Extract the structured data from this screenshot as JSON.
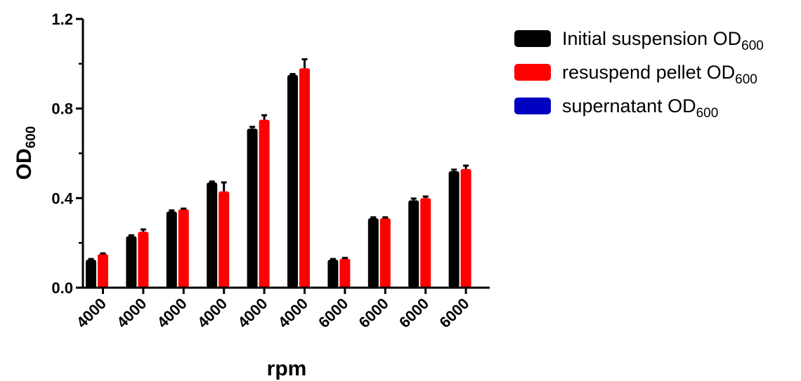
{
  "chart_data": {
    "type": "bar",
    "categories": [
      "4000",
      "4000",
      "4000",
      "4000",
      "4000",
      "4000",
      "6000",
      "6000",
      "6000",
      "6000"
    ],
    "series": [
      {
        "name": "Initial suspension OD",
        "name_sub": "600",
        "color": "#000000",
        "values": [
          0.125,
          0.23,
          0.34,
          0.47,
          0.71,
          0.95,
          0.125,
          0.31,
          0.39,
          0.52
        ],
        "errors": [
          0.003,
          0.004,
          0.005,
          0.004,
          0.008,
          0.004,
          0.003,
          0.004,
          0.008,
          0.007
        ]
      },
      {
        "name": "resuspend pellet OD",
        "name_sub": "600",
        "color": "#ff0000",
        "values": [
          0.15,
          0.25,
          0.35,
          0.43,
          0.75,
          0.98,
          0.13,
          0.31,
          0.4,
          0.53
        ],
        "errors": [
          0.003,
          0.01,
          0.003,
          0.04,
          0.02,
          0.04,
          0.003,
          0.004,
          0.007,
          0.015
        ]
      },
      {
        "name": "supernatant OD",
        "name_sub": "600",
        "color": "#0000c0",
        "values": [
          0.003,
          0.003,
          0.003,
          0.003,
          0.003,
          0.003,
          0.003,
          0.003,
          0.003,
          0.003
        ],
        "errors": [
          0,
          0,
          0,
          0,
          0,
          0,
          0,
          0,
          0,
          0
        ]
      }
    ],
    "xlabel": "rpm",
    "ylabel": "OD",
    "ylabel_sub": "600",
    "ylim": [
      0,
      1.2
    ],
    "yticks": [
      "0.0",
      "0.4",
      "0.8",
      "1.2"
    ],
    "ytick_values": [
      0,
      0.4,
      0.8,
      1.2
    ],
    "grid": false,
    "legend_position": "top-right"
  }
}
